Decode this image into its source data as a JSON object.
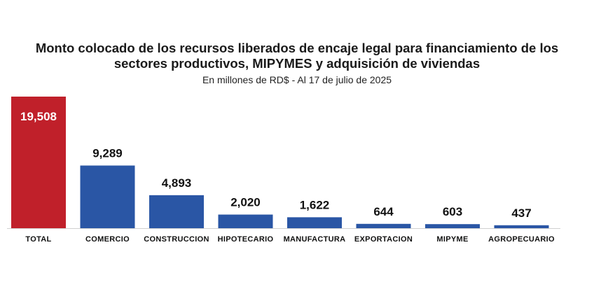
{
  "chart_data": {
    "type": "bar",
    "title_line1": "Monto colocado de los recursos liberados de encaje legal para financiamiento de los",
    "title_line2": "sectores productivos, MIPYMES y adquisición de viviendas",
    "subtitle": "En millones de RD$ - Al 17 de julio de 2025",
    "categories": [
      "TOTAL",
      "COMERCIO",
      "CONSTRUCCION",
      "HIPOTECARIO",
      "MANUFACTURA",
      "EXPORTACION",
      "MIPYME",
      "AGROPECUARIO"
    ],
    "values": [
      19508,
      9289,
      4893,
      2020,
      1622,
      644,
      603,
      437
    ],
    "value_labels": [
      "19,508",
      "9,289",
      "4,893",
      "2,020",
      "1,622",
      "644",
      "603",
      "437"
    ],
    "xlabel": "",
    "ylabel": "",
    "ylim": [
      0,
      19508
    ],
    "grid": false,
    "legend": "none",
    "colors": {
      "highlight": "#c0202a",
      "bar": "#2a56a5",
      "highlight_label": "#ffffff",
      "label": "#111111",
      "axis": "#d0d0d0"
    }
  }
}
